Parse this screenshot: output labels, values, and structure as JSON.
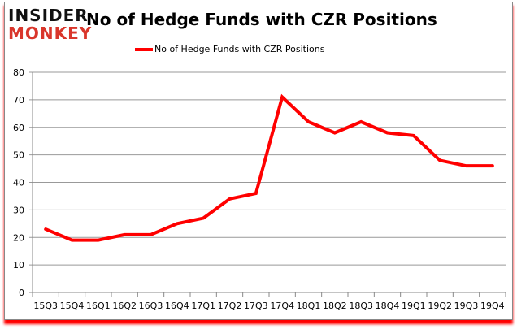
{
  "logo": {
    "line1": "INSIDER",
    "line2": "MONKEY"
  },
  "chart_data": {
    "type": "line",
    "title": "No of Hedge Funds with CZR Positions",
    "xlabel": "",
    "ylabel": "",
    "categories": [
      "15Q3",
      "15Q4",
      "16Q1",
      "16Q2",
      "16Q3",
      "16Q4",
      "17Q1",
      "17Q2",
      "17Q3",
      "17Q4",
      "18Q1",
      "18Q2",
      "18Q3",
      "18Q4",
      "19Q1",
      "19Q2",
      "19Q3",
      "19Q4"
    ],
    "series": [
      {
        "name": "No of Hedge Funds with CZR Positions",
        "color": "#ff0000",
        "values": [
          23,
          19,
          19,
          21,
          21,
          25,
          27,
          34,
          36,
          71,
          62,
          58,
          62,
          58,
          57,
          48,
          46,
          46
        ]
      }
    ],
    "ylim": [
      0,
      80
    ],
    "yticks": [
      0,
      10,
      20,
      30,
      40,
      50,
      60,
      70,
      80
    ],
    "grid": true,
    "legend_position": "top-center"
  }
}
